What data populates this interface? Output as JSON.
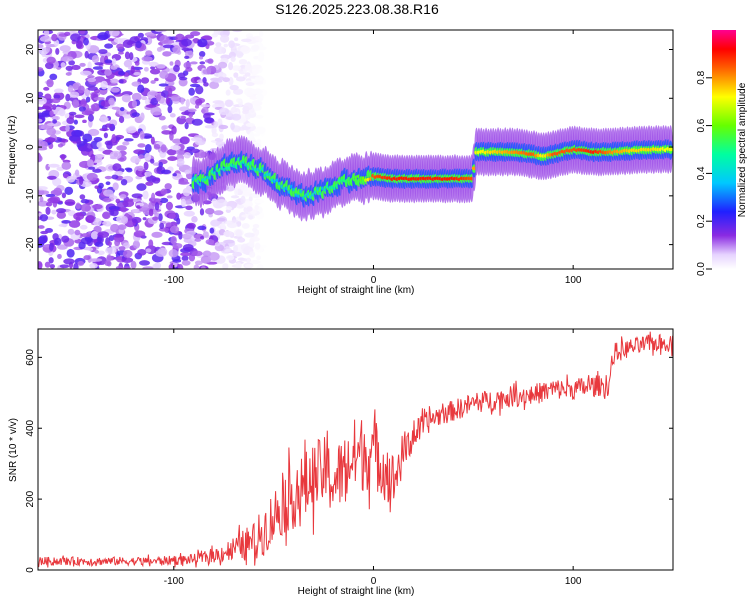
{
  "chart_data": [
    {
      "type": "heatmap",
      "title": "S126.2025.223.08.38.R16",
      "xlabel": "Height of straight line (km)",
      "ylabel": "Frequency (Hz)",
      "xlim": [
        -168,
        150
      ],
      "ylim": [
        -25,
        24
      ],
      "xticks": [
        -100,
        0,
        100
      ],
      "yticks": [
        -20,
        -10,
        0,
        10,
        20
      ],
      "colorbar": {
        "label": "Normalized spectral amplitude",
        "range": [
          0,
          1
        ],
        "ticks": [
          0.0,
          0.2,
          0.4,
          0.6,
          0.8
        ]
      },
      "ridge": {
        "description_points_x": [
          -85,
          -75,
          -65,
          -55,
          -45,
          -35,
          -25,
          -15,
          -5,
          0,
          10,
          20,
          30,
          40,
          50,
          51,
          60,
          70,
          80,
          85,
          90,
          100,
          110,
          120,
          130,
          140,
          150
        ],
        "frequency_hz": [
          -7,
          -4,
          -3,
          -5,
          -8,
          -10,
          -9,
          -7,
          -6.5,
          -6,
          -6.5,
          -6.5,
          -6.5,
          -6.5,
          -6.5,
          -1,
          -1,
          -1,
          -1.5,
          -2,
          -1.5,
          -0.5,
          -1,
          -1,
          -0.7,
          -0.5,
          -0.5
        ],
        "peak_amplitude": [
          0.4,
          0.45,
          0.45,
          0.4,
          0.35,
          0.35,
          0.4,
          0.5,
          0.6,
          0.85,
          0.9,
          0.9,
          0.9,
          0.9,
          0.85,
          0.7,
          0.75,
          0.8,
          0.85,
          0.7,
          0.85,
          0.85,
          0.9,
          0.8,
          0.75,
          0.75,
          0.7
        ]
      },
      "noise_region_x": [
        -168,
        -80
      ]
    },
    {
      "type": "line",
      "title": "",
      "xlabel": "Height of straight line (km)",
      "ylabel": "SNR (10 * v/v)",
      "xlim": [
        -168,
        150
      ],
      "ylim": [
        0,
        680
      ],
      "xticks": [
        -100,
        0,
        100
      ],
      "yticks": [
        0,
        200,
        400,
        600
      ],
      "series": [
        {
          "name": "SNR",
          "color": "#e8383d",
          "x": [
            -168,
            -150,
            -130,
            -110,
            -90,
            -80,
            -70,
            -60,
            -55,
            -50,
            -45,
            -40,
            -35,
            -30,
            -25,
            -20,
            -15,
            -10,
            -5,
            0,
            5,
            10,
            15,
            20,
            30,
            40,
            50,
            60,
            70,
            80,
            90,
            100,
            110,
            118,
            120,
            130,
            140,
            150
          ],
          "values": [
            25,
            25,
            25,
            25,
            30,
            40,
            60,
            80,
            110,
            150,
            190,
            210,
            230,
            260,
            280,
            250,
            280,
            320,
            330,
            330,
            300,
            250,
            330,
            380,
            430,
            450,
            470,
            480,
            490,
            495,
            510,
            510,
            520,
            520,
            610,
            630,
            640,
            640
          ],
          "noise_amplitude": [
            12,
            12,
            12,
            12,
            15,
            20,
            35,
            55,
            70,
            80,
            90,
            95,
            100,
            100,
            100,
            100,
            100,
            110,
            110,
            100,
            100,
            80,
            60,
            40,
            30,
            30,
            30,
            30,
            30,
            30,
            30,
            30,
            30,
            30,
            30,
            25,
            25,
            25
          ]
        }
      ]
    }
  ]
}
